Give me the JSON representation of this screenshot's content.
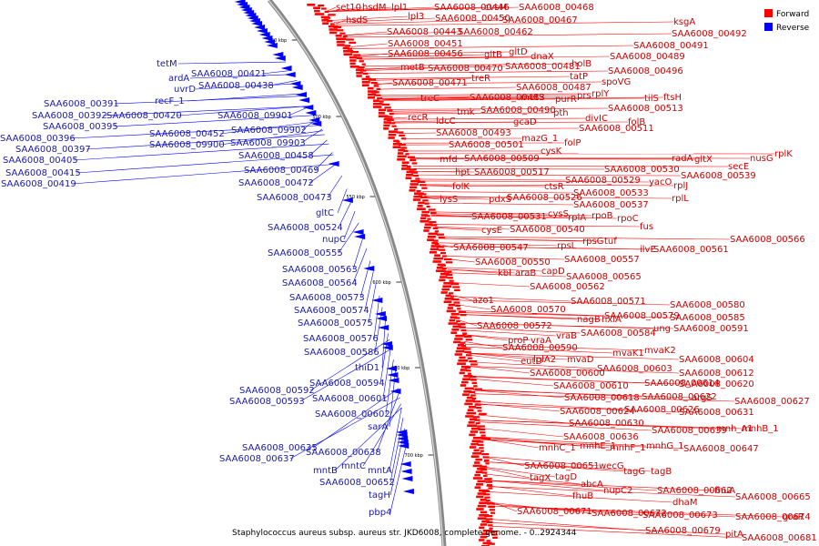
{
  "caption": "Staphylococcus aureus subsp. aureus str. JKD6008, complete genome. - 0..2924344",
  "legend": [
    {
      "label": "Forward",
      "color": "#ff0000"
    },
    {
      "label": "Reverse",
      "color": "#0000ff"
    }
  ],
  "colors": {
    "forward": "#ff0000",
    "reverse": "#0000ff",
    "backbone": "#888888",
    "text_forward": "#cc0000",
    "text_reverse": "#1a1aaa"
  },
  "scale_ticks": [
    "450 kbp",
    "500 kbp",
    "550 kbp",
    "600 kbp",
    "650 kbp",
    "700 kbp"
  ],
  "forward_labels": [
    "set10",
    "hsdM",
    "lpl1",
    "SAA6008_00446",
    "cvsM",
    "SAA6008_00468",
    "hsdS",
    "lpl3",
    "SAA6008_00450",
    "SAA6008_00467",
    "SAA6008_00443",
    "SAA6008_00462",
    "ksgA",
    "SAA6008_00492",
    "SAA6008_00451",
    "SAA6008_00491",
    "SAA6008_00456",
    "gltB",
    "gltD",
    "dnaX",
    "holB",
    "SAA6008_00489",
    "metB",
    "SAA6008_00470",
    "SAA6008_00481",
    "tatP",
    "SAA6008_00496",
    "SAA6008_00471",
    "treR",
    "spoVG",
    "SAA6008_00487",
    "rplY",
    "treC",
    "SAA6008_00483",
    "metS",
    "purR",
    "prs",
    "tilS",
    "ftsH",
    "recR",
    "tmk",
    "SAA6008_00490",
    "pth",
    "SAA6008_00513",
    "ldcC",
    "gcaD",
    "divIC",
    "folB",
    "SAA6008_00493",
    "SAA6008_00511",
    "mazG_1",
    "SAA6008_00501",
    "folP",
    "cysK",
    "mfd",
    "SAA6008_00509",
    "hpt",
    "SAA6008_00517",
    "radA",
    "gltX",
    "nusG",
    "rplK",
    "SAA6008_00530",
    "secE",
    "SAA6008_00539",
    "folK",
    "ctsR",
    "SAA6008_00529",
    "yacO",
    "rplJ",
    "lysS",
    "pdxS",
    "SAA6008_00526",
    "SAA6008_00533",
    "rplL",
    "SAA6008_00537",
    "SAA6008_00531",
    "cysS",
    "rplA",
    "rpoB",
    "rpoC",
    "fus",
    "cysE",
    "SAA6008_00540",
    "rpsG",
    "tuf",
    "rpsL",
    "SAA6008_00547",
    "ilvE",
    "SAA6008_00561",
    "SAA6008_00566",
    "SAA6008_00550",
    "SAA6008_00557",
    "kbl",
    "araB",
    "capD",
    "SAA6008_00565",
    "SAA6008_00562",
    "azo1",
    "SAA6008_00571",
    "SAA6008_00570",
    "SAA6008_00580",
    "nagB",
    "hxlA",
    "SAA6008_00579",
    "SAA6008_00585",
    "SAA6008_00572",
    "ung",
    "SAA6008_00591",
    "proP",
    "vraA",
    "vraB",
    "SAA6008_00584",
    "SAA6008_00590",
    "mvaK1",
    "mvaK2",
    "eutD",
    "lplA2",
    "mvaD",
    "SAA6008_00604",
    "SAA6008_00600",
    "SAA6008_00603",
    "SAA6008_00612",
    "SAA6008_00610",
    "SAA6008_00614",
    "SAA6008_00620",
    "SAA6008_00618",
    "SAA6008_00622",
    "argS",
    "SAA6008_00627",
    "SAA6008_00624",
    "SAA6008_00626",
    "SAA6008_00631",
    "SAA6008_00630",
    "SAA6008_00636",
    "SAA6008_00639",
    "mnh_A1",
    "mnhB_1",
    "mnhC_1",
    "mnhE_1",
    "mnhF_1",
    "mnhG_1",
    "SAA6008_00647",
    "SAA6008_00651",
    "wecG",
    "tagG",
    "tagB",
    "tagX",
    "tagD",
    "abcA",
    "fhuB",
    "nupC2",
    "SAA6008_00662",
    "fhuA",
    "dhaM",
    "SAA6008_00665",
    "SAA6008_00671",
    "SAA6008_00672",
    "SAA6008_00673",
    "SAA6008_00674",
    "graR",
    "SAA6008_00679",
    "pitA",
    "SAA6008_00681"
  ],
  "reverse_labels": [
    "tetM",
    "ardA",
    "SAA6008_00421",
    "uvrD",
    "SAA6008_00438",
    "recF_1",
    "SAA6008_00391",
    "SAA6008_00392",
    "SAA6008_00420",
    "SAA6008_00395",
    "SAA6008_00396",
    "SAA6008_00397",
    "SAA6008_00405",
    "SAA6008_00415",
    "SAA6008_00419",
    "SAA6008_09901",
    "SAA6008_09902",
    "SAA6008_00452",
    "SAA6008_09900",
    "SAA6008_09903",
    "SAA6008_00458",
    "SAA6008_00469",
    "SAA6008_00472",
    "SAA6008_00473",
    "gltC",
    "SAA6008_00524",
    "nupC",
    "SAA6008_00555",
    "SAA6008_00563",
    "SAA6008_00564",
    "SAA6008_00573",
    "SAA6008_00574",
    "SAA6008_00575",
    "SAA6008_00576",
    "SAA6008_00586",
    "thiD1",
    "SAA6008_00594",
    "SAA6008_00592",
    "SAA6008_00593",
    "SAA6008_00601",
    "SAA6008_00602",
    "sarA",
    "SAA6008_00635",
    "SAA6008_00638",
    "SAA6008_00637",
    "mntC",
    "mntA",
    "mntB",
    "SAA6008_00652",
    "tagH",
    "pbp4"
  ]
}
